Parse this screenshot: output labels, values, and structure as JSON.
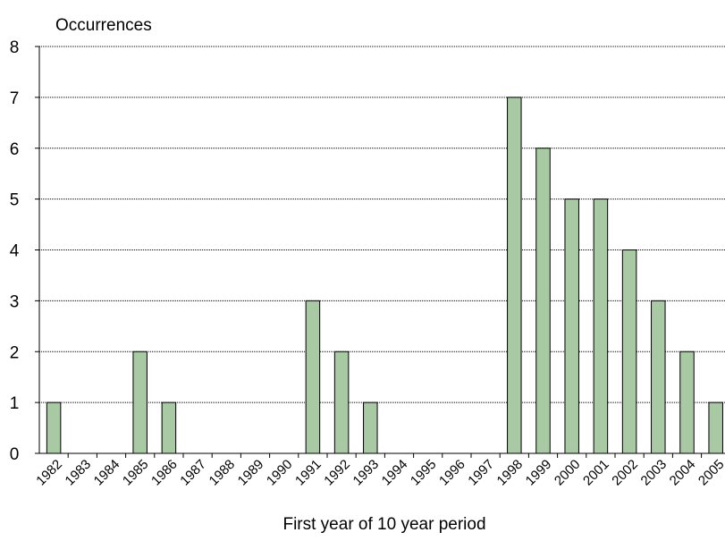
{
  "chart_data": {
    "type": "bar",
    "title": "",
    "ylabel": "Occurrences",
    "xlabel": "First year of 10 year period",
    "categories": [
      "1982",
      "1983",
      "1984",
      "1985",
      "1986",
      "1987",
      "1988",
      "1989",
      "1990",
      "1991",
      "1992",
      "1993",
      "1994",
      "1995",
      "1996",
      "1997",
      "1998",
      "1999",
      "2000",
      "2001",
      "2002",
      "2003",
      "2004",
      "2005"
    ],
    "values": [
      1,
      0,
      0,
      2,
      1,
      0,
      0,
      0,
      0,
      3,
      2,
      1,
      0,
      0,
      0,
      0,
      7,
      6,
      5,
      5,
      4,
      3,
      2,
      1
    ],
    "ylim": [
      0,
      8
    ],
    "yticks": [
      0,
      1,
      2,
      3,
      4,
      5,
      6,
      7,
      8
    ],
    "grid": true,
    "legend": "none",
    "colors": {
      "bar_fill": "#a9c9a5",
      "bar_stroke": "#000000",
      "grid": "#000000",
      "axis": "#000000",
      "text": "#000000"
    }
  }
}
